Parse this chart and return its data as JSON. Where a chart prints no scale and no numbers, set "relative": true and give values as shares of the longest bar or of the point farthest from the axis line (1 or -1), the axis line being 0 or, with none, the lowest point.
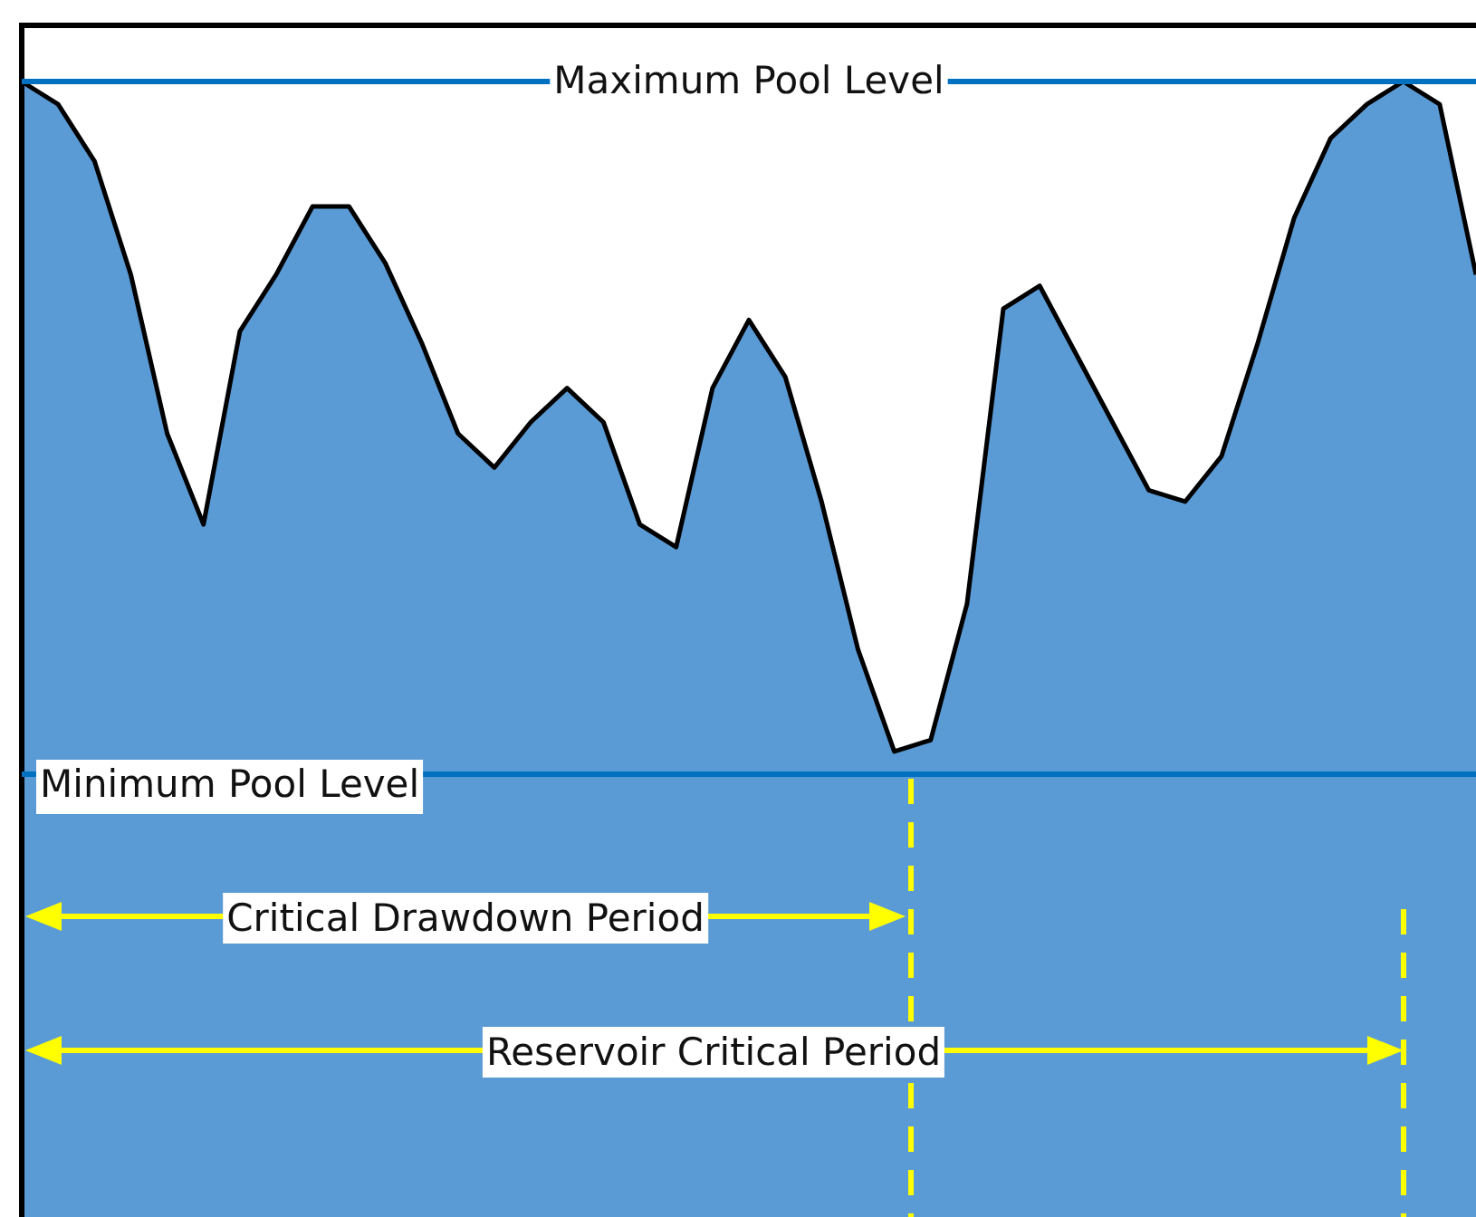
{
  "chart_data": {
    "type": "area",
    "relative": true,
    "color": "#5b9bd5",
    "categories": [
      null,
      null,
      null,
      null,
      null,
      null,
      null,
      null,
      null,
      null,
      null,
      null,
      null,
      null,
      null,
      null,
      null,
      null,
      null,
      null,
      null,
      null,
      null,
      null,
      null,
      null,
      null,
      null,
      null,
      null,
      null,
      null,
      null,
      null,
      null,
      null,
      null,
      null,
      null,
      null,
      null
    ],
    "values": [
      1.0,
      0.98,
      0.93,
      0.83,
      0.69,
      0.61,
      0.78,
      0.83,
      0.89,
      0.89,
      0.84,
      0.77,
      0.69,
      0.66,
      0.7,
      0.73,
      0.7,
      0.61,
      0.59,
      0.73,
      0.79,
      0.74,
      0.63,
      0.5,
      0.41,
      0.42,
      0.54,
      0.8,
      0.82,
      0.76,
      0.7,
      0.64,
      0.63,
      0.67,
      0.77,
      0.88,
      0.95,
      0.98,
      1.0,
      0.98,
      0.83
    ],
    "ref_lines": [
      {
        "axis": "y",
        "value": 1.0,
        "label": "Maximum Pool Level",
        "color": "#0070c0"
      },
      {
        "axis": "y",
        "value": 0.39,
        "label": "Minimum Pool Level",
        "color": "#0070c0"
      }
    ],
    "annotations": [
      "Critical Drawdown Period",
      "Reservoir Critical Period"
    ]
  }
}
